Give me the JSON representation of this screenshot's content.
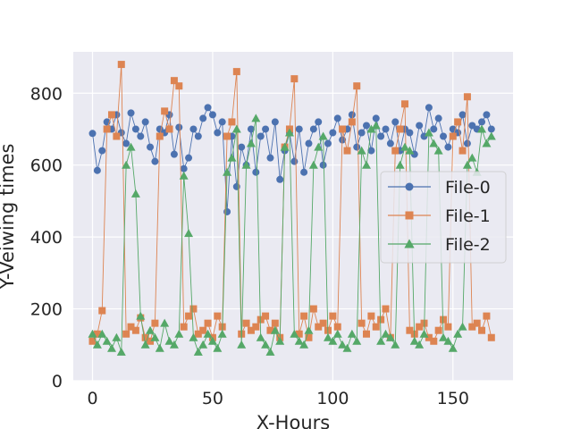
{
  "chart_data": {
    "type": "line",
    "xlabel": "X-Hours",
    "ylabel": "Y-Veiwing times",
    "xlim": [
      -8,
      175
    ],
    "ylim": [
      0,
      915
    ],
    "xticks": [
      0,
      50,
      100,
      150
    ],
    "yticks": [
      0,
      200,
      400,
      600,
      800
    ],
    "grid": true,
    "legend_position": "center-right",
    "series": [
      {
        "name": "File-0",
        "color": "#4c72b0",
        "marker": "circle",
        "x": [
          0,
          2,
          4,
          6,
          8,
          10,
          12,
          14,
          16,
          18,
          20,
          22,
          24,
          26,
          28,
          30,
          32,
          34,
          36,
          38,
          40,
          42,
          44,
          46,
          48,
          50,
          52,
          54,
          56,
          58,
          60,
          62,
          64,
          66,
          68,
          70,
          72,
          74,
          76,
          78,
          80,
          82,
          84,
          86,
          88,
          90,
          92,
          94,
          96,
          98,
          100,
          102,
          104,
          106,
          108,
          110,
          112,
          114,
          116,
          118,
          120,
          122,
          124,
          126,
          128,
          130,
          132,
          134,
          136,
          138,
          140,
          142,
          144,
          146,
          148,
          150,
          152,
          154,
          156,
          158,
          160,
          162,
          164,
          166
        ],
        "values": [
          688,
          585,
          640,
          720,
          700,
          740,
          690,
          660,
          745,
          700,
          680,
          720,
          650,
          610,
          700,
          690,
          740,
          630,
          705,
          590,
          620,
          700,
          680,
          730,
          760,
          740,
          690,
          720,
          470,
          680,
          540,
          650,
          600,
          700,
          580,
          680,
          700,
          620,
          720,
          560,
          640,
          690,
          610,
          700,
          580,
          660,
          700,
          720,
          600,
          660,
          690,
          730,
          670,
          700,
          740,
          650,
          690,
          710,
          640,
          730,
          680,
          700,
          660,
          720,
          640,
          700,
          690,
          630,
          710,
          680,
          760,
          700,
          730,
          680,
          650,
          700,
          690,
          740,
          660,
          710,
          700,
          720,
          740,
          700
        ]
      },
      {
        "name": "File-1",
        "color": "#dd8452",
        "marker": "square",
        "x": [
          0,
          2,
          4,
          6,
          8,
          10,
          12,
          14,
          16,
          18,
          20,
          22,
          24,
          26,
          28,
          30,
          32,
          34,
          36,
          38,
          40,
          42,
          44,
          46,
          48,
          50,
          52,
          54,
          56,
          58,
          60,
          62,
          64,
          66,
          68,
          70,
          72,
          74,
          76,
          78,
          80,
          82,
          84,
          86,
          88,
          90,
          92,
          94,
          96,
          98,
          100,
          102,
          104,
          106,
          108,
          110,
          112,
          114,
          116,
          118,
          120,
          122,
          124,
          126,
          128,
          130,
          132,
          134,
          136,
          138,
          140,
          142,
          144,
          146,
          148,
          150,
          152,
          154,
          156,
          158,
          160,
          162,
          164,
          166
        ],
        "values": [
          110,
          130,
          195,
          700,
          740,
          680,
          880,
          130,
          150,
          140,
          175,
          120,
          110,
          160,
          680,
          750,
          700,
          835,
          820,
          150,
          180,
          200,
          130,
          140,
          160,
          120,
          180,
          150,
          680,
          720,
          860,
          130,
          160,
          140,
          150,
          170,
          180,
          140,
          160,
          120,
          650,
          700,
          840,
          130,
          180,
          120,
          200,
          150,
          160,
          140,
          180,
          150,
          700,
          640,
          720,
          820,
          160,
          130,
          180,
          150,
          170,
          200,
          120,
          640,
          700,
          770,
          140,
          130,
          150,
          160,
          120,
          110,
          140,
          170,
          150,
          680,
          720,
          640,
          790,
          150,
          160,
          140,
          180,
          120
        ]
      },
      {
        "name": "File-2",
        "color": "#55a868",
        "marker": "triangle",
        "x": [
          0,
          2,
          4,
          6,
          8,
          10,
          12,
          14,
          16,
          18,
          20,
          22,
          24,
          26,
          28,
          30,
          32,
          34,
          36,
          38,
          40,
          42,
          44,
          46,
          48,
          50,
          52,
          54,
          56,
          58,
          60,
          62,
          64,
          66,
          68,
          70,
          72,
          74,
          76,
          78,
          80,
          82,
          84,
          86,
          88,
          90,
          92,
          94,
          96,
          98,
          100,
          102,
          104,
          106,
          108,
          110,
          112,
          114,
          116,
          118,
          120,
          122,
          124,
          126,
          128,
          130,
          132,
          134,
          136,
          138,
          140,
          142,
          144,
          146,
          148,
          150,
          152,
          154,
          156,
          158,
          160,
          162,
          164,
          166
        ],
        "values": [
          130,
          100,
          130,
          110,
          90,
          120,
          80,
          600,
          650,
          520,
          180,
          100,
          140,
          120,
          90,
          160,
          110,
          100,
          130,
          570,
          410,
          120,
          80,
          100,
          130,
          110,
          90,
          130,
          580,
          620,
          700,
          100,
          600,
          660,
          730,
          120,
          100,
          80,
          140,
          110,
          650,
          690,
          130,
          110,
          100,
          140,
          600,
          650,
          680,
          120,
          110,
          130,
          100,
          90,
          130,
          110,
          640,
          600,
          700,
          710,
          110,
          130,
          120,
          100,
          600,
          650,
          640,
          110,
          100,
          130,
          690,
          660,
          640,
          120,
          110,
          90,
          130,
          150,
          600,
          620,
          580,
          700,
          660,
          680
        ]
      }
    ]
  }
}
